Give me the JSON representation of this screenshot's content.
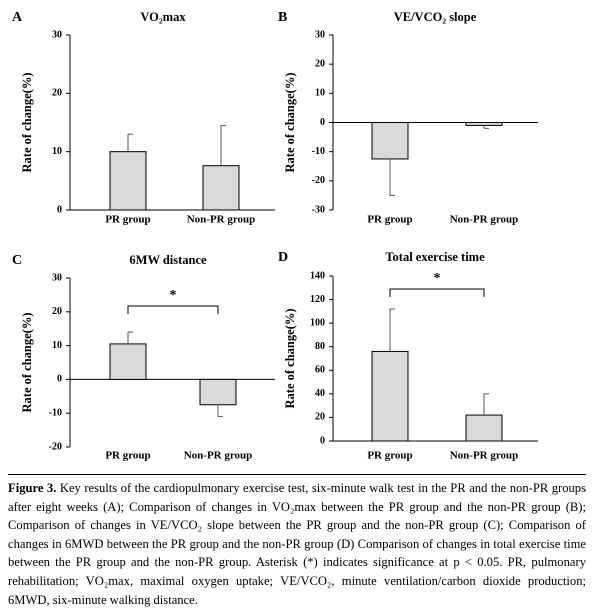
{
  "chart_data": [
    {
      "type": "bar",
      "panel": "A",
      "title": "VO₂max",
      "y_label": "Rate of change(%)",
      "categories": [
        "PR group",
        "Non-PR group"
      ],
      "values": [
        10,
        7.6
      ],
      "errors": [
        3,
        6.9
      ],
      "color": "#d9d9d9",
      "ylim": [
        0,
        30
      ],
      "yticks": [
        0,
        10,
        20,
        30
      ]
    },
    {
      "type": "bar",
      "panel": "B",
      "title": "VE/VCO₂ slope",
      "y_label": "Rate of change(%)",
      "categories": [
        "PR group",
        "Non-PR group"
      ],
      "values": [
        -12.5,
        -1
      ],
      "errors": [
        12.5,
        1
      ],
      "color": "#d9d9d9",
      "ylim": [
        -30,
        30
      ],
      "yticks": [
        -30,
        -20,
        -10,
        0,
        10,
        20,
        30
      ]
    },
    {
      "type": "bar",
      "panel": "C",
      "title": "6MW distance",
      "y_label": "Rate of change(%)",
      "categories": [
        "PR group",
        "Non-PR group"
      ],
      "values": [
        10.5,
        -7.5
      ],
      "errors": [
        3.5,
        3.5
      ],
      "color": "#d9d9d9",
      "ylim": [
        -20,
        30
      ],
      "yticks": [
        -20,
        -10,
        0,
        10,
        20,
        30
      ],
      "annotation": "*"
    },
    {
      "type": "bar",
      "panel": "D",
      "title": "Total exercise time",
      "y_label": "Rate of change(%)",
      "categories": [
        "PR group",
        "Non-PR group"
      ],
      "values": [
        76,
        22
      ],
      "errors": [
        36,
        18
      ],
      "color": "#d9d9d9",
      "ylim": [
        0,
        140
      ],
      "yticks": [
        0,
        20,
        40,
        60,
        80,
        100,
        120,
        140
      ],
      "annotation": "*"
    }
  ],
  "caption": {
    "label": "Figure 3.",
    "text": "Key results of the cardiopulmonary exercise test, six-minute walk test in the PR and the non-PR groups after eight weeks (A); Comparison of changes in VO₂max between the PR group and the non-PR group (B); Comparison of changes in VE/VCO₂ slope between the PR group and the non-PR group (C); Comparison of changes in 6MWD between the PR group and the non-PR group (D) Comparison of changes in total exercise time between the PR group and the non-PR group. Asterisk (*) indicates significance at p < 0.05. PR, pulmonary rehabilitation; VO₂max, maximal oxygen uptake; VE/VCO₂, minute ventilation/carbon dioxide production; 6MWD, six-minute walking distance."
  }
}
